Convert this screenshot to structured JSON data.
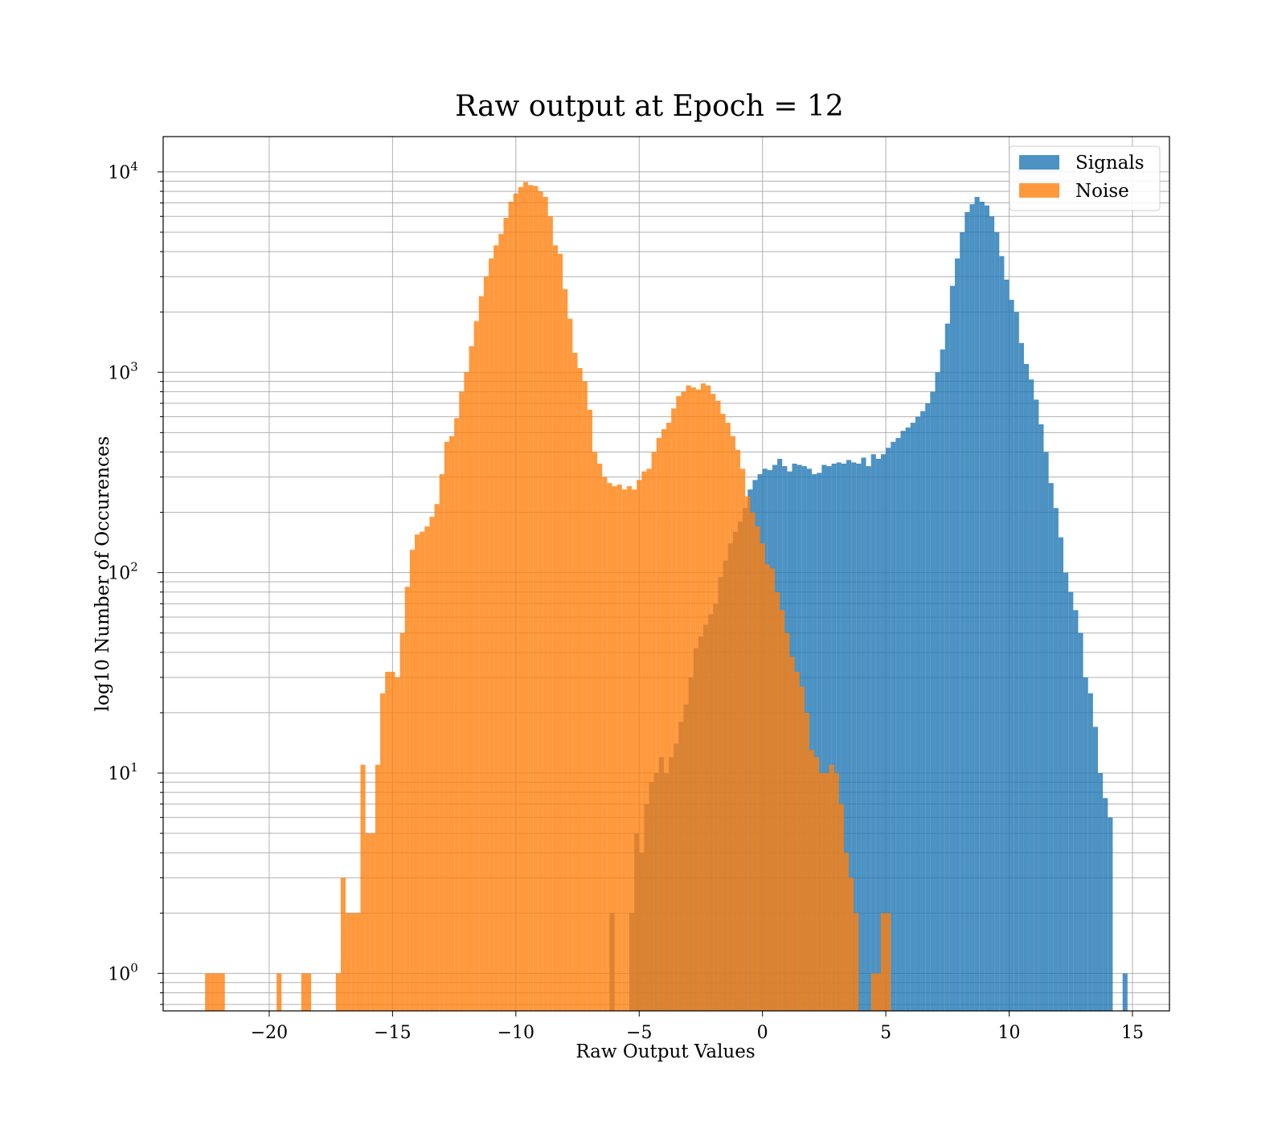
{
  "chart_data": {
    "type": "bar",
    "subtype": "histogram",
    "title": "Raw output at Epoch = 12",
    "xlabel": "Raw Output Values",
    "ylabel": "log10 Number of Occurences",
    "yscale": "log",
    "xlim": [
      -24.3,
      16.5
    ],
    "ylim": [
      0.65,
      15000
    ],
    "xticks": [
      -20,
      -15,
      -10,
      -5,
      0,
      5,
      10,
      15
    ],
    "xtick_labels": [
      "−20",
      "−15",
      "−10",
      "−5",
      "0",
      "5",
      "10",
      "15"
    ],
    "yticks": [
      {
        "value": 1,
        "base": "10",
        "exp": "0"
      },
      {
        "value": 10,
        "base": "10",
        "exp": "1"
      },
      {
        "value": 100,
        "base": "10",
        "exp": "2"
      },
      {
        "value": 1000,
        "base": "10",
        "exp": "3"
      },
      {
        "value": 10000,
        "base": "10",
        "exp": "4"
      }
    ],
    "grid": true,
    "legend_position": "top-right",
    "series": [
      {
        "name": "Signals",
        "color": "#1f77b4",
        "alpha": 0.8,
        "bin_width": 0.2,
        "bins": [
          [
            -6.2,
            2
          ],
          [
            -5.4,
            2
          ],
          [
            -5.2,
            5
          ],
          [
            -5.0,
            4
          ],
          [
            -4.8,
            7
          ],
          [
            -4.6,
            9
          ],
          [
            -4.4,
            10
          ],
          [
            -4.2,
            12
          ],
          [
            -4.0,
            10
          ],
          [
            -3.8,
            12
          ],
          [
            -3.6,
            14
          ],
          [
            -3.4,
            18
          ],
          [
            -3.2,
            22
          ],
          [
            -3.0,
            30
          ],
          [
            -2.8,
            42
          ],
          [
            -2.6,
            48
          ],
          [
            -2.4,
            55
          ],
          [
            -2.2,
            62
          ],
          [
            -2.0,
            70
          ],
          [
            -1.8,
            95
          ],
          [
            -1.6,
            115
          ],
          [
            -1.4,
            140
          ],
          [
            -1.2,
            160
          ],
          [
            -1.0,
            180
          ],
          [
            -0.8,
            210
          ],
          [
            -0.6,
            260
          ],
          [
            -0.4,
            290
          ],
          [
            -0.2,
            310
          ],
          [
            0.0,
            330
          ],
          [
            0.2,
            325
          ],
          [
            0.4,
            345
          ],
          [
            0.6,
            370
          ],
          [
            0.8,
            340
          ],
          [
            1.0,
            320
          ],
          [
            1.2,
            350
          ],
          [
            1.4,
            345
          ],
          [
            1.6,
            340
          ],
          [
            1.8,
            330
          ],
          [
            2.0,
            310
          ],
          [
            2.2,
            315
          ],
          [
            2.4,
            345
          ],
          [
            2.6,
            340
          ],
          [
            2.8,
            350
          ],
          [
            3.0,
            355
          ],
          [
            3.2,
            350
          ],
          [
            3.4,
            365
          ],
          [
            3.6,
            355
          ],
          [
            3.8,
            350
          ],
          [
            4.0,
            375
          ],
          [
            4.2,
            340
          ],
          [
            4.4,
            390
          ],
          [
            4.6,
            370
          ],
          [
            4.8,
            390
          ],
          [
            5.0,
            420
          ],
          [
            5.2,
            450
          ],
          [
            5.4,
            470
          ],
          [
            5.6,
            510
          ],
          [
            5.8,
            530
          ],
          [
            6.0,
            560
          ],
          [
            6.2,
            600
          ],
          [
            6.4,
            640
          ],
          [
            6.6,
            700
          ],
          [
            6.8,
            800
          ],
          [
            7.0,
            1000
          ],
          [
            7.2,
            1300
          ],
          [
            7.4,
            1750
          ],
          [
            7.6,
            2700
          ],
          [
            7.8,
            3700
          ],
          [
            8.0,
            5000
          ],
          [
            8.2,
            6300
          ],
          [
            8.4,
            6900
          ],
          [
            8.6,
            7500
          ],
          [
            8.8,
            7100
          ],
          [
            9.0,
            6800
          ],
          [
            9.2,
            6000
          ],
          [
            9.4,
            5000
          ],
          [
            9.6,
            3800
          ],
          [
            9.8,
            2900
          ],
          [
            10.0,
            2300
          ],
          [
            10.2,
            2000
          ],
          [
            10.4,
            1400
          ],
          [
            10.6,
            1100
          ],
          [
            10.8,
            920
          ],
          [
            11.0,
            730
          ],
          [
            11.2,
            550
          ],
          [
            11.4,
            400
          ],
          [
            11.6,
            280
          ],
          [
            11.8,
            210
          ],
          [
            12.0,
            150
          ],
          [
            12.2,
            100
          ],
          [
            12.4,
            80
          ],
          [
            12.6,
            65
          ],
          [
            12.8,
            50
          ],
          [
            13.0,
            30
          ],
          [
            13.2,
            25
          ],
          [
            13.4,
            17
          ],
          [
            13.6,
            10
          ],
          [
            13.8,
            7.5
          ],
          [
            14.0,
            6
          ],
          [
            14.6,
            1
          ]
        ]
      },
      {
        "name": "Noise",
        "color": "#ff7f0e",
        "alpha": 0.8,
        "bin_width": 0.2,
        "bins": [
          [
            -22.6,
            1
          ],
          [
            -22.4,
            1
          ],
          [
            -22.2,
            1
          ],
          [
            -22.0,
            1
          ],
          [
            -19.7,
            1
          ],
          [
            -18.7,
            1
          ],
          [
            -18.5,
            1
          ],
          [
            -17.3,
            1
          ],
          [
            -17.1,
            3
          ],
          [
            -16.9,
            2
          ],
          [
            -16.7,
            2
          ],
          [
            -16.5,
            2
          ],
          [
            -16.3,
            11
          ],
          [
            -16.1,
            5
          ],
          [
            -15.9,
            5
          ],
          [
            -15.7,
            11
          ],
          [
            -15.5,
            25
          ],
          [
            -15.3,
            32
          ],
          [
            -15.1,
            32
          ],
          [
            -14.9,
            30
          ],
          [
            -14.7,
            50
          ],
          [
            -14.5,
            85
          ],
          [
            -14.3,
            130
          ],
          [
            -14.1,
            155
          ],
          [
            -13.9,
            160
          ],
          [
            -13.7,
            170
          ],
          [
            -13.5,
            190
          ],
          [
            -13.3,
            220
          ],
          [
            -13.1,
            310
          ],
          [
            -12.9,
            450
          ],
          [
            -12.7,
            480
          ],
          [
            -12.5,
            590
          ],
          [
            -12.3,
            800
          ],
          [
            -12.1,
            1000
          ],
          [
            -11.9,
            1350
          ],
          [
            -11.7,
            1800
          ],
          [
            -11.5,
            2400
          ],
          [
            -11.3,
            3000
          ],
          [
            -11.1,
            3700
          ],
          [
            -10.9,
            4300
          ],
          [
            -10.7,
            4900
          ],
          [
            -10.5,
            5900
          ],
          [
            -10.3,
            7100
          ],
          [
            -10.1,
            7800
          ],
          [
            -9.9,
            8400
          ],
          [
            -9.7,
            8900
          ],
          [
            -9.5,
            8600
          ],
          [
            -9.3,
            8500
          ],
          [
            -9.1,
            8000
          ],
          [
            -8.9,
            7500
          ],
          [
            -8.7,
            6000
          ],
          [
            -8.5,
            4300
          ],
          [
            -8.3,
            3900
          ],
          [
            -8.1,
            2600
          ],
          [
            -7.9,
            1850
          ],
          [
            -7.7,
            1250
          ],
          [
            -7.5,
            1050
          ],
          [
            -7.3,
            900
          ],
          [
            -7.1,
            650
          ],
          [
            -6.9,
            400
          ],
          [
            -6.7,
            350
          ],
          [
            -6.5,
            300
          ],
          [
            -6.3,
            280
          ],
          [
            -6.1,
            270
          ],
          [
            -5.9,
            275
          ],
          [
            -5.7,
            260
          ],
          [
            -5.5,
            270
          ],
          [
            -5.3,
            260
          ],
          [
            -5.1,
            290
          ],
          [
            -4.9,
            320
          ],
          [
            -4.7,
            330
          ],
          [
            -4.5,
            400
          ],
          [
            -4.3,
            470
          ],
          [
            -4.1,
            520
          ],
          [
            -3.9,
            560
          ],
          [
            -3.7,
            660
          ],
          [
            -3.5,
            760
          ],
          [
            -3.3,
            800
          ],
          [
            -3.1,
            860
          ],
          [
            -2.9,
            840
          ],
          [
            -2.7,
            820
          ],
          [
            -2.5,
            880
          ],
          [
            -2.3,
            860
          ],
          [
            -2.1,
            780
          ],
          [
            -1.9,
            720
          ],
          [
            -1.7,
            620
          ],
          [
            -1.5,
            560
          ],
          [
            -1.3,
            480
          ],
          [
            -1.1,
            410
          ],
          [
            -0.9,
            330
          ],
          [
            -0.7,
            240
          ],
          [
            -0.5,
            200
          ],
          [
            -0.3,
            170
          ],
          [
            -0.1,
            140
          ],
          [
            0.1,
            110
          ],
          [
            0.3,
            105
          ],
          [
            0.5,
            80
          ],
          [
            0.7,
            65
          ],
          [
            0.9,
            50
          ],
          [
            1.1,
            38
          ],
          [
            1.3,
            32
          ],
          [
            1.5,
            27
          ],
          [
            1.7,
            20
          ],
          [
            1.9,
            13
          ],
          [
            2.1,
            12
          ],
          [
            2.3,
            10
          ],
          [
            2.5,
            10
          ],
          [
            2.7,
            11
          ],
          [
            2.9,
            10
          ],
          [
            3.1,
            7
          ],
          [
            3.3,
            4
          ],
          [
            3.5,
            3
          ],
          [
            3.7,
            2
          ],
          [
            4.4,
            1
          ],
          [
            4.6,
            1
          ],
          [
            4.8,
            2
          ],
          [
            5.0,
            2
          ]
        ]
      }
    ]
  }
}
